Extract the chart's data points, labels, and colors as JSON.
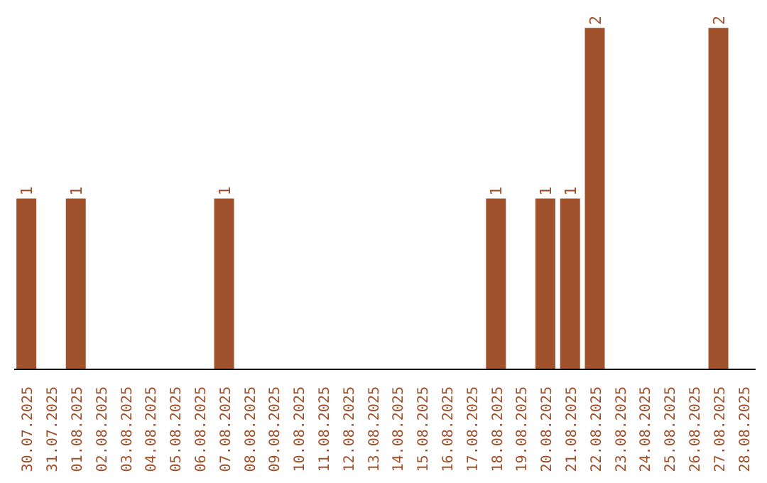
{
  "chart_data": {
    "type": "bar",
    "categories": [
      "30.07.2025",
      "31.07.2025",
      "01.08.2025",
      "02.08.2025",
      "03.08.2025",
      "04.08.2025",
      "05.08.2025",
      "06.08.2025",
      "07.08.2025",
      "08.08.2025",
      "09.08.2025",
      "10.08.2025",
      "11.08.2025",
      "12.08.2025",
      "13.08.2025",
      "14.08.2025",
      "15.08.2025",
      "16.08.2025",
      "17.08.2025",
      "18.08.2025",
      "19.08.2025",
      "20.08.2025",
      "21.08.2025",
      "22.08.2025",
      "23.08.2025",
      "24.08.2025",
      "25.08.2025",
      "26.08.2025",
      "27.08.2025",
      "28.08.2025"
    ],
    "values": [
      1,
      0,
      1,
      0,
      0,
      0,
      0,
      0,
      1,
      0,
      0,
      0,
      0,
      0,
      0,
      0,
      0,
      0,
      0,
      1,
      0,
      1,
      1,
      2,
      0,
      0,
      0,
      0,
      2,
      0
    ],
    "value_labels": [
      "1",
      null,
      "1",
      null,
      null,
      null,
      null,
      null,
      "1",
      null,
      null,
      null,
      null,
      null,
      null,
      null,
      null,
      null,
      null,
      "1",
      null,
      "1",
      "1",
      "2",
      null,
      null,
      null,
      null,
      "2",
      null
    ],
    "color": "#a0522d",
    "grid": false,
    "legend": false
  }
}
